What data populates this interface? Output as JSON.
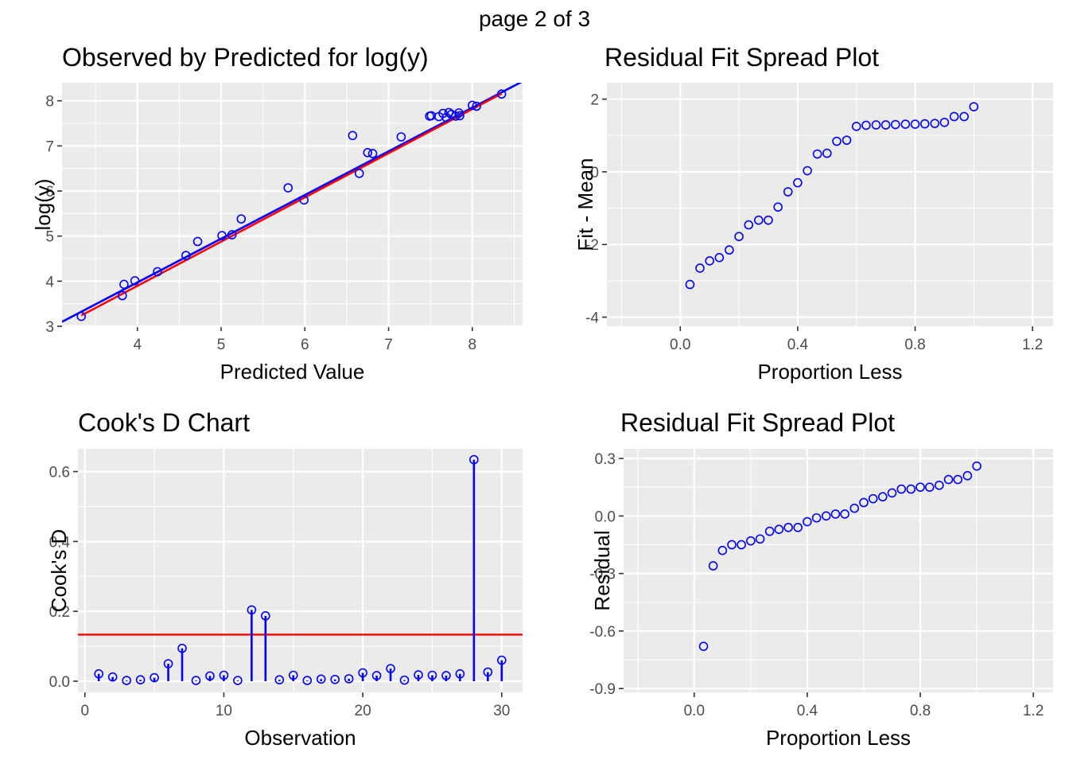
{
  "page_label": "page 2 of 3",
  "colors": {
    "points": "#0000ff",
    "fit_line": "#0000ff",
    "reference": "#ff0000",
    "panel": "#ebebeb",
    "grid": "#ffffff"
  },
  "chart_data": [
    {
      "id": "obs-pred",
      "type": "scatter",
      "title": "Observed by Predicted for log(y)",
      "xlabel": "Predicted Value",
      "ylabel": "log(y)",
      "xlim": [
        3.1,
        8.6
      ],
      "ylim": [
        3.0,
        8.4
      ],
      "xticks": [
        4,
        5,
        6,
        7,
        8
      ],
      "yticks": [
        3,
        4,
        5,
        6,
        7,
        8
      ],
      "x": [
        3.33,
        3.82,
        3.84,
        3.97,
        4.24,
        4.58,
        4.72,
        5.01,
        5.13,
        5.24,
        5.8,
        5.99,
        6.57,
        6.65,
        6.75,
        6.81,
        7.15,
        7.49,
        7.51,
        7.6,
        7.65,
        7.69,
        7.72,
        7.75,
        7.8,
        7.84,
        7.85,
        8.0,
        8.05,
        8.35
      ],
      "y": [
        3.22,
        3.68,
        3.93,
        4.01,
        4.21,
        4.57,
        4.88,
        5.01,
        5.03,
        5.38,
        6.07,
        5.8,
        7.23,
        6.39,
        6.85,
        6.83,
        7.2,
        7.66,
        7.67,
        7.65,
        7.72,
        7.63,
        7.74,
        7.7,
        7.66,
        7.73,
        7.67,
        7.9,
        7.88,
        8.15
      ],
      "lines": [
        {
          "name": "fit",
          "color": "#0000ff",
          "x": [
            3.1,
            8.6
          ],
          "y": [
            3.1,
            8.43
          ]
        },
        {
          "name": "reference",
          "color": "#ff0000",
          "x": [
            3.33,
            8.35
          ],
          "y": [
            3.24,
            8.16
          ]
        }
      ]
    },
    {
      "id": "rfs-fit",
      "type": "scatter",
      "title": "Residual Fit Spread Plot",
      "xlabel": "Proportion Less",
      "ylabel": "Fit - Mean",
      "xlim": [
        -0.25,
        1.27
      ],
      "ylim": [
        -4.25,
        2.45
      ],
      "xticks": [
        0.0,
        0.4,
        0.8,
        1.2
      ],
      "xtick_labels": [
        "0.0",
        "0.4",
        "0.8",
        "1.2"
      ],
      "yticks": [
        -4,
        -2,
        0,
        2
      ],
      "x": [
        0.033,
        0.067,
        0.1,
        0.133,
        0.167,
        0.2,
        0.233,
        0.267,
        0.3,
        0.333,
        0.367,
        0.4,
        0.433,
        0.467,
        0.5,
        0.533,
        0.567,
        0.6,
        0.633,
        0.667,
        0.7,
        0.733,
        0.767,
        0.8,
        0.833,
        0.867,
        0.9,
        0.933,
        0.967,
        1.0
      ],
      "y": [
        -3.1,
        -2.65,
        -2.45,
        -2.36,
        -2.15,
        -1.78,
        -1.46,
        -1.33,
        -1.33,
        -0.97,
        -0.55,
        -0.3,
        0.03,
        0.49,
        0.51,
        0.84,
        0.87,
        1.25,
        1.28,
        1.29,
        1.29,
        1.3,
        1.31,
        1.31,
        1.32,
        1.33,
        1.36,
        1.52,
        1.52,
        1.79
      ]
    },
    {
      "id": "cooks",
      "type": "stem",
      "title": "Cook's D Chart",
      "xlabel": "Observation",
      "ylabel": "Cook's D",
      "xlim": [
        -0.5,
        31.5
      ],
      "ylim": [
        -0.032,
        0.665
      ],
      "xticks": [
        0,
        10,
        20,
        30
      ],
      "yticks": [
        0.0,
        0.2,
        0.4,
        0.6
      ],
      "ytick_labels": [
        "0.0",
        "0.2",
        "0.4",
        "0.6"
      ],
      "x": [
        1,
        2,
        3,
        4,
        5,
        6,
        7,
        8,
        9,
        10,
        11,
        12,
        13,
        14,
        15,
        16,
        17,
        18,
        19,
        20,
        21,
        22,
        23,
        24,
        25,
        26,
        27,
        28,
        29,
        30
      ],
      "y": [
        0.021,
        0.012,
        0.002,
        0.004,
        0.01,
        0.05,
        0.094,
        0.002,
        0.015,
        0.017,
        0.002,
        0.204,
        0.187,
        0.004,
        0.017,
        0.002,
        0.006,
        0.005,
        0.007,
        0.024,
        0.016,
        0.036,
        0.003,
        0.018,
        0.017,
        0.016,
        0.021,
        0.634,
        0.026,
        0.06
      ],
      "threshold": 0.1333,
      "threshold_color": "#ff0000"
    },
    {
      "id": "rfs-resid",
      "type": "scatter",
      "title": "Residual Fit Spread Plot",
      "xlabel": "Proportion Less",
      "ylabel": "Residual",
      "xlim": [
        -0.25,
        1.27
      ],
      "ylim": [
        -0.92,
        0.35
      ],
      "xticks": [
        0.0,
        0.4,
        0.8,
        1.2
      ],
      "xtick_labels": [
        "0.0",
        "0.4",
        "0.8",
        "1.2"
      ],
      "yticks": [
        -0.9,
        -0.6,
        -0.3,
        0.0,
        0.3
      ],
      "ytick_labels": [
        "-0.9",
        "-0.6",
        "-0.3",
        "0.0",
        "0.3"
      ],
      "x": [
        0.033,
        0.067,
        0.1,
        0.133,
        0.167,
        0.2,
        0.233,
        0.267,
        0.3,
        0.333,
        0.367,
        0.4,
        0.433,
        0.467,
        0.5,
        0.533,
        0.567,
        0.6,
        0.633,
        0.667,
        0.7,
        0.733,
        0.767,
        0.8,
        0.833,
        0.867,
        0.9,
        0.933,
        0.967,
        1.0
      ],
      "y": [
        -0.68,
        -0.26,
        -0.18,
        -0.15,
        -0.15,
        -0.13,
        -0.12,
        -0.08,
        -0.07,
        -0.06,
        -0.06,
        -0.03,
        -0.01,
        0.0,
        0.01,
        0.01,
        0.04,
        0.07,
        0.09,
        0.1,
        0.12,
        0.14,
        0.14,
        0.15,
        0.15,
        0.16,
        0.19,
        0.19,
        0.21,
        0.26
      ]
    }
  ]
}
